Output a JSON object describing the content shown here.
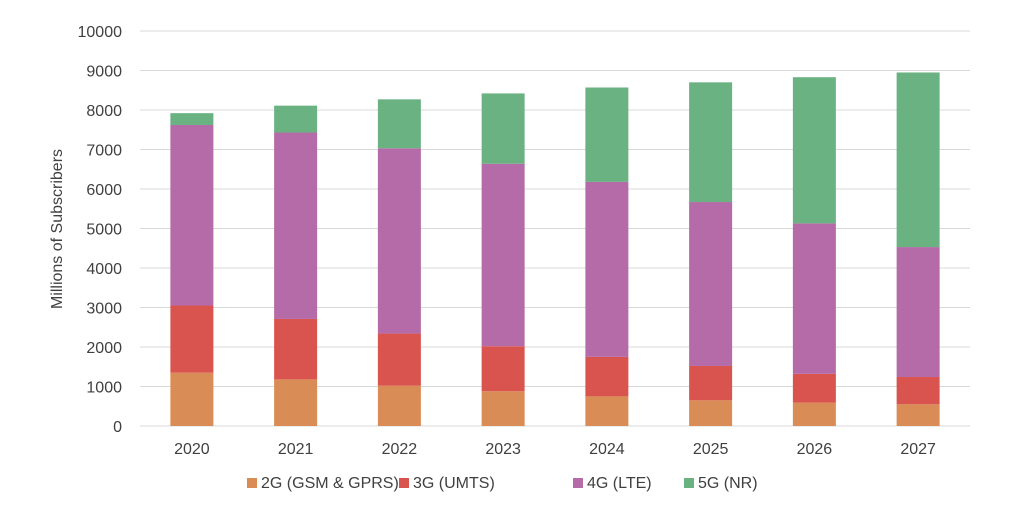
{
  "chart_data": {
    "type": "bar",
    "stacked": true,
    "categories": [
      "2020",
      "2021",
      "2022",
      "2023",
      "2024",
      "2025",
      "2026",
      "2027"
    ],
    "series": [
      {
        "name": "2G (GSM & GPRS)",
        "color": "#D98C55",
        "values": [
          1350,
          1180,
          1020,
          880,
          750,
          650,
          590,
          550
        ]
      },
      {
        "name": "3G (UMTS)",
        "color": "#D9534F",
        "values": [
          1700,
          1530,
          1320,
          1140,
          1000,
          870,
          730,
          690
        ]
      },
      {
        "name": "4G (LTE)",
        "color": "#B56BA8",
        "values": [
          4570,
          4720,
          4690,
          4620,
          4430,
          4150,
          3810,
          3290
        ]
      },
      {
        "name": "5G (NR)",
        "color": "#6AB282",
        "values": [
          300,
          680,
          1240,
          1780,
          2390,
          3030,
          3700,
          4420
        ]
      }
    ],
    "ylabel": "Millions of Subscribers",
    "ylim": [
      0,
      10000
    ],
    "yticks": [
      0,
      1000,
      2000,
      3000,
      4000,
      5000,
      6000,
      7000,
      8000,
      9000,
      10000
    ],
    "grid": true,
    "legend": "bottom"
  }
}
